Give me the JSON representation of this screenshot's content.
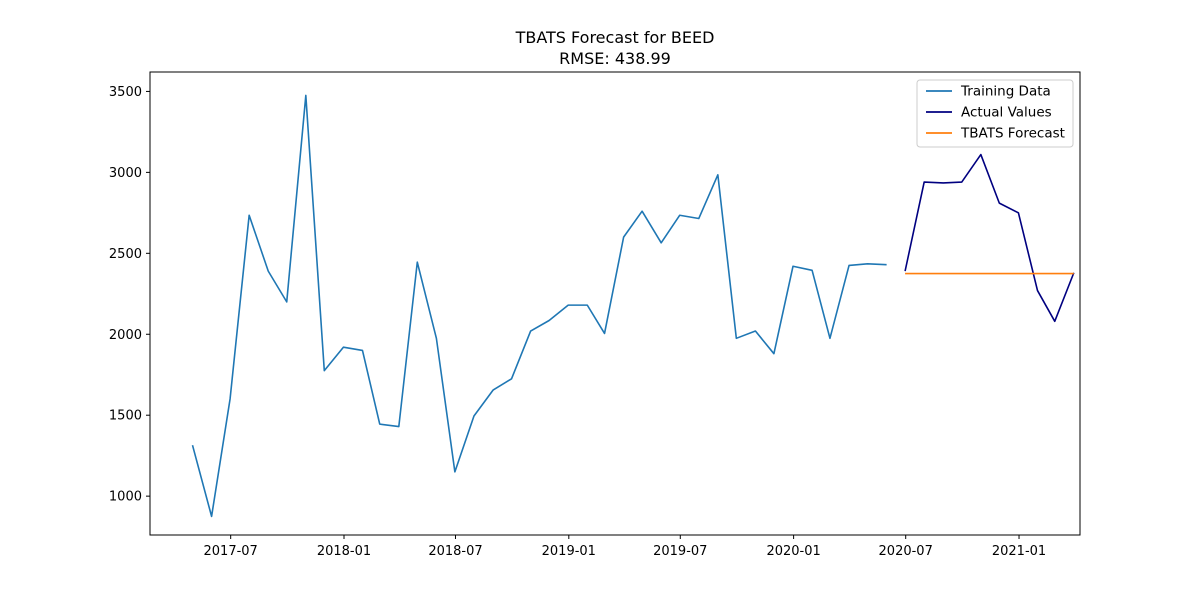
{
  "chart_data": {
    "type": "line",
    "title": "TBATS Forecast for BEED",
    "subtitle": "RMSE: 438.99",
    "xlabel": "",
    "ylabel": "",
    "ylim": [
      760,
      3620
    ],
    "xlim": [
      "2017-02-20",
      "2021-04-10"
    ],
    "grid": false,
    "legend_position": "top-right",
    "x_ticks": [
      "2017-07",
      "2018-01",
      "2018-07",
      "2019-01",
      "2019-07",
      "2020-01",
      "2020-07",
      "2021-01"
    ],
    "y_ticks": [
      1000,
      1500,
      2000,
      2500,
      3000,
      3500
    ],
    "series": [
      {
        "name": "Training Data",
        "color": "#1f77b4",
        "x": [
          "2017-04-30",
          "2017-05-31",
          "2017-06-30",
          "2017-07-31",
          "2017-08-31",
          "2017-09-30",
          "2017-10-31",
          "2017-11-30",
          "2017-12-31",
          "2018-01-31",
          "2018-02-28",
          "2018-03-31",
          "2018-04-30",
          "2018-05-31",
          "2018-06-30",
          "2018-07-31",
          "2018-08-31",
          "2018-09-30",
          "2018-10-31",
          "2018-11-30",
          "2018-12-31",
          "2019-01-31",
          "2019-02-28",
          "2019-03-31",
          "2019-04-30",
          "2019-05-31",
          "2019-06-30",
          "2019-07-31",
          "2019-08-31",
          "2019-09-30",
          "2019-10-31",
          "2019-11-30",
          "2019-12-31",
          "2020-01-31",
          "2020-02-29",
          "2020-03-31",
          "2020-04-30",
          "2020-05-31"
        ],
        "y": [
          1315,
          875,
          1600,
          2735,
          2390,
          2200,
          3475,
          1775,
          1920,
          1900,
          1445,
          1430,
          2445,
          1975,
          1150,
          1495,
          1655,
          1725,
          2020,
          2085,
          2180,
          2180,
          2005,
          2600,
          2760,
          2565,
          2735,
          2715,
          2985,
          1975,
          2020,
          1880,
          2420,
          2395,
          1975,
          2425,
          2435,
          2430
        ]
      },
      {
        "name": "Actual Values",
        "color": "#000080",
        "x": [
          "2020-06-30",
          "2020-07-31",
          "2020-08-31",
          "2020-09-30",
          "2020-10-31",
          "2020-11-30",
          "2020-12-31",
          "2021-01-31",
          "2021-02-28",
          "2021-03-31"
        ],
        "y": [
          2390,
          2940,
          2935,
          2940,
          3110,
          2810,
          2750,
          2270,
          2080,
          2380
        ]
      },
      {
        "name": "TBATS Forecast",
        "color": "#ff7f0e",
        "x": [
          "2020-06-30",
          "2020-07-31",
          "2020-08-31",
          "2020-09-30",
          "2020-10-31",
          "2020-11-30",
          "2020-12-31",
          "2021-01-31",
          "2021-02-28",
          "2021-03-31"
        ],
        "y": [
          2375,
          2375,
          2375,
          2375,
          2375,
          2375,
          2375,
          2375,
          2375,
          2375
        ]
      }
    ]
  }
}
